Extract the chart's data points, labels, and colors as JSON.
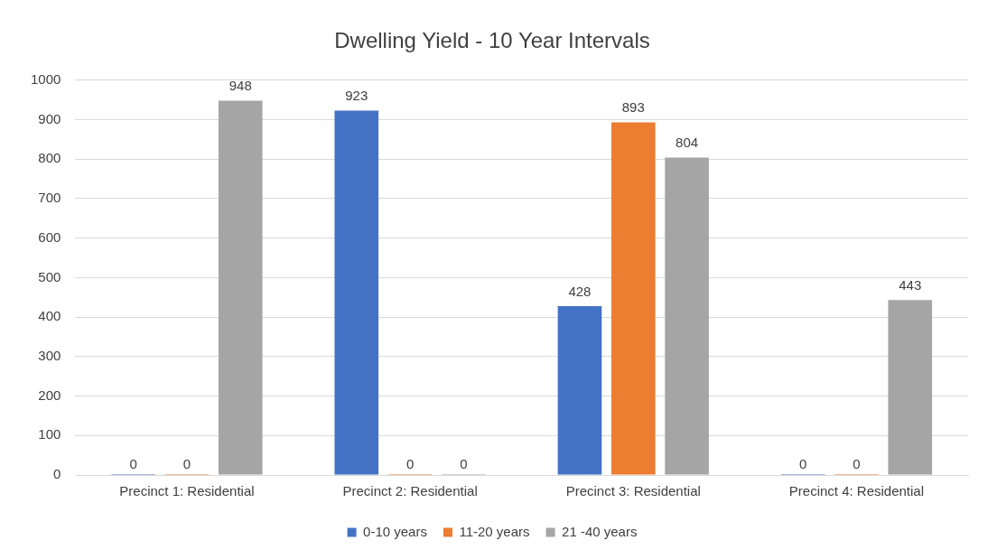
{
  "chart_data": {
    "type": "bar",
    "title": "Dwelling Yield - 10 Year Intervals",
    "categories": [
      "Precinct 1: Residential",
      "Precinct 2: Residential",
      "Precinct 3: Residential",
      "Precinct 4: Residential"
    ],
    "series": [
      {
        "name": "0-10 years",
        "color": "#4472c4",
        "values": [
          0,
          923,
          428,
          0
        ]
      },
      {
        "name": "11-20 years",
        "color": "#ed7d31",
        "values": [
          0,
          0,
          893,
          0
        ]
      },
      {
        "name": "21 -40 years",
        "color": "#a5a5a5",
        "values": [
          948,
          0,
          804,
          443
        ]
      }
    ],
    "ylim": [
      0,
      1000
    ],
    "yticks": [
      0,
      100,
      200,
      300,
      400,
      500,
      600,
      700,
      800,
      900,
      1000
    ],
    "grid": "y",
    "legend": "bottom",
    "data_labels": true
  }
}
